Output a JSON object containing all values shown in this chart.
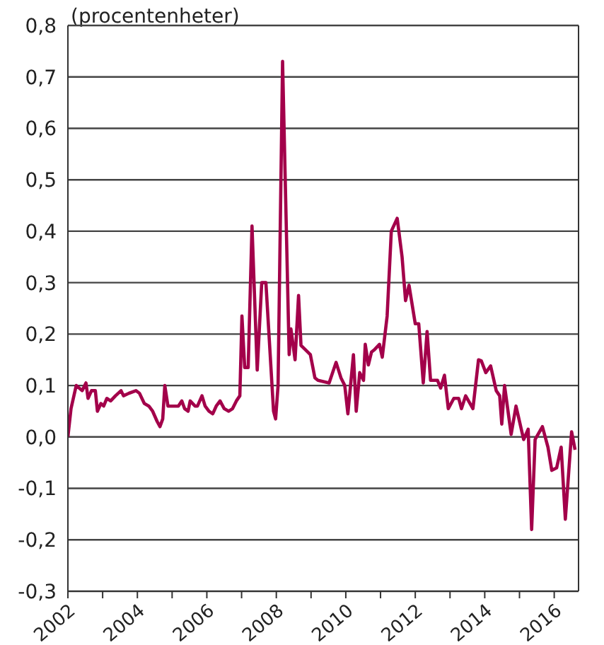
{
  "chart_data": {
    "type": "line",
    "title": "(procentenheter)",
    "x": [
      2002,
      2002.09,
      2002.24,
      2002.41,
      2002.52,
      2002.58,
      2002.68,
      2002.79,
      2002.85,
      2002.95,
      2003.03,
      2003.12,
      2003.23,
      2003.37,
      2003.53,
      2003.6,
      2003.76,
      2003.96,
      2004.06,
      2004.2,
      2004.33,
      2004.44,
      2004.57,
      2004.65,
      2004.73,
      2004.79,
      2004.88,
      2005.05,
      2005.18,
      2005.28,
      2005.36,
      2005.46,
      2005.52,
      2005.66,
      2005.73,
      2005.86,
      2005.95,
      2006.06,
      2006.17,
      2006.27,
      2006.38,
      2006.5,
      2006.63,
      2006.74,
      2006.85,
      2006.95,
      2007.01,
      2007.09,
      2007.19,
      2007.3,
      2007.45,
      2007.58,
      2007.7,
      2007.92,
      2007.98,
      2008.05,
      2008.18,
      2008.37,
      2008.42,
      2008.54,
      2008.64,
      2008.71,
      2008.98,
      2009.11,
      2009.2,
      2009.52,
      2009.72,
      2009.86,
      2009.97,
      2010.06,
      2010.22,
      2010.3,
      2010.4,
      2010.51,
      2010.56,
      2010.65,
      2010.74,
      2010.83,
      2010.97,
      2011.05,
      2011.19,
      2011.31,
      2011.48,
      2011.62,
      2011.72,
      2011.82,
      2012.0,
      2012.1,
      2012.23,
      2012.34,
      2012.44,
      2012.64,
      2012.73,
      2012.84,
      2012.95,
      2013.11,
      2013.25,
      2013.33,
      2013.45,
      2013.66,
      2013.82,
      2013.9,
      2014.03,
      2014.17,
      2014.33,
      2014.43,
      2014.49,
      2014.57,
      2014.76,
      2014.9,
      2015.12,
      2015.25,
      2015.35,
      2015.45,
      2015.66,
      2015.82,
      2015.93,
      2016.07,
      2016.2,
      2016.32,
      2016.5,
      2016.6
    ],
    "series": [
      {
        "color": "#a3004a",
        "values": [
          0.0,
          0.055,
          0.1,
          0.09,
          0.105,
          0.075,
          0.09,
          0.09,
          0.05,
          0.065,
          0.06,
          0.075,
          0.07,
          0.08,
          0.09,
          0.08,
          0.085,
          0.09,
          0.085,
          0.065,
          0.06,
          0.05,
          0.03,
          0.02,
          0.035,
          0.1,
          0.06,
          0.06,
          0.06,
          0.07,
          0.055,
          0.05,
          0.07,
          0.06,
          0.06,
          0.08,
          0.06,
          0.05,
          0.045,
          0.06,
          0.07,
          0.055,
          0.05,
          0.055,
          0.07,
          0.08,
          0.235,
          0.135,
          0.135,
          0.41,
          0.13,
          0.3,
          0.3,
          0.05,
          0.035,
          0.1,
          0.73,
          0.16,
          0.21,
          0.15,
          0.275,
          0.178,
          0.16,
          0.115,
          0.11,
          0.105,
          0.145,
          0.115,
          0.1,
          0.045,
          0.16,
          0.05,
          0.125,
          0.11,
          0.18,
          0.14,
          0.165,
          0.17,
          0.18,
          0.155,
          0.235,
          0.4,
          0.425,
          0.35,
          0.265,
          0.295,
          0.22,
          0.22,
          0.105,
          0.205,
          0.11,
          0.11,
          0.095,
          0.12,
          0.055,
          0.075,
          0.075,
          0.055,
          0.08,
          0.055,
          0.15,
          0.148,
          0.125,
          0.138,
          0.09,
          0.08,
          0.025,
          0.1,
          0.005,
          0.06,
          -0.005,
          0.015,
          -0.18,
          -0.005,
          0.02,
          -0.02,
          -0.065,
          -0.06,
          -0.02,
          -0.16,
          0.01,
          -0.025
        ]
      }
    ],
    "xlim": [
      2002,
      2016.7
    ],
    "xticks": [
      2002,
      {
        "value": 2003,
        "label": null
      },
      2004,
      {
        "value": 2005,
        "label": null
      },
      2006,
      {
        "value": 2007,
        "label": null
      },
      2008,
      {
        "value": 2009,
        "label": null
      },
      2010,
      {
        "value": 2011,
        "label": null
      },
      2012,
      {
        "value": 2013,
        "label": null
      },
      2014,
      {
        "value": 2015,
        "label": null
      },
      2016
    ],
    "ylim": [
      -0.3,
      0.8
    ],
    "yticks": [
      {
        "value": -0.3,
        "label": "-0,3"
      },
      {
        "value": -0.2,
        "label": "-0,2"
      },
      {
        "value": -0.1,
        "label": "-0,1"
      },
      {
        "value": 0,
        "label": "0,0"
      },
      {
        "value": 0.1,
        "label": "0,1"
      },
      {
        "value": 0.2,
        "label": "0,2"
      },
      {
        "value": 0.3,
        "label": "0,3"
      },
      {
        "value": 0.4,
        "label": "0,4"
      },
      {
        "value": 0.5,
        "label": "0,5"
      },
      {
        "value": 0.6,
        "label": "0,6"
      },
      {
        "value": 0.7,
        "label": "0,7"
      },
      {
        "value": 0.8,
        "label": "0,8"
      }
    ],
    "grid": "y",
    "marker": "none",
    "line_style": "solid"
  }
}
